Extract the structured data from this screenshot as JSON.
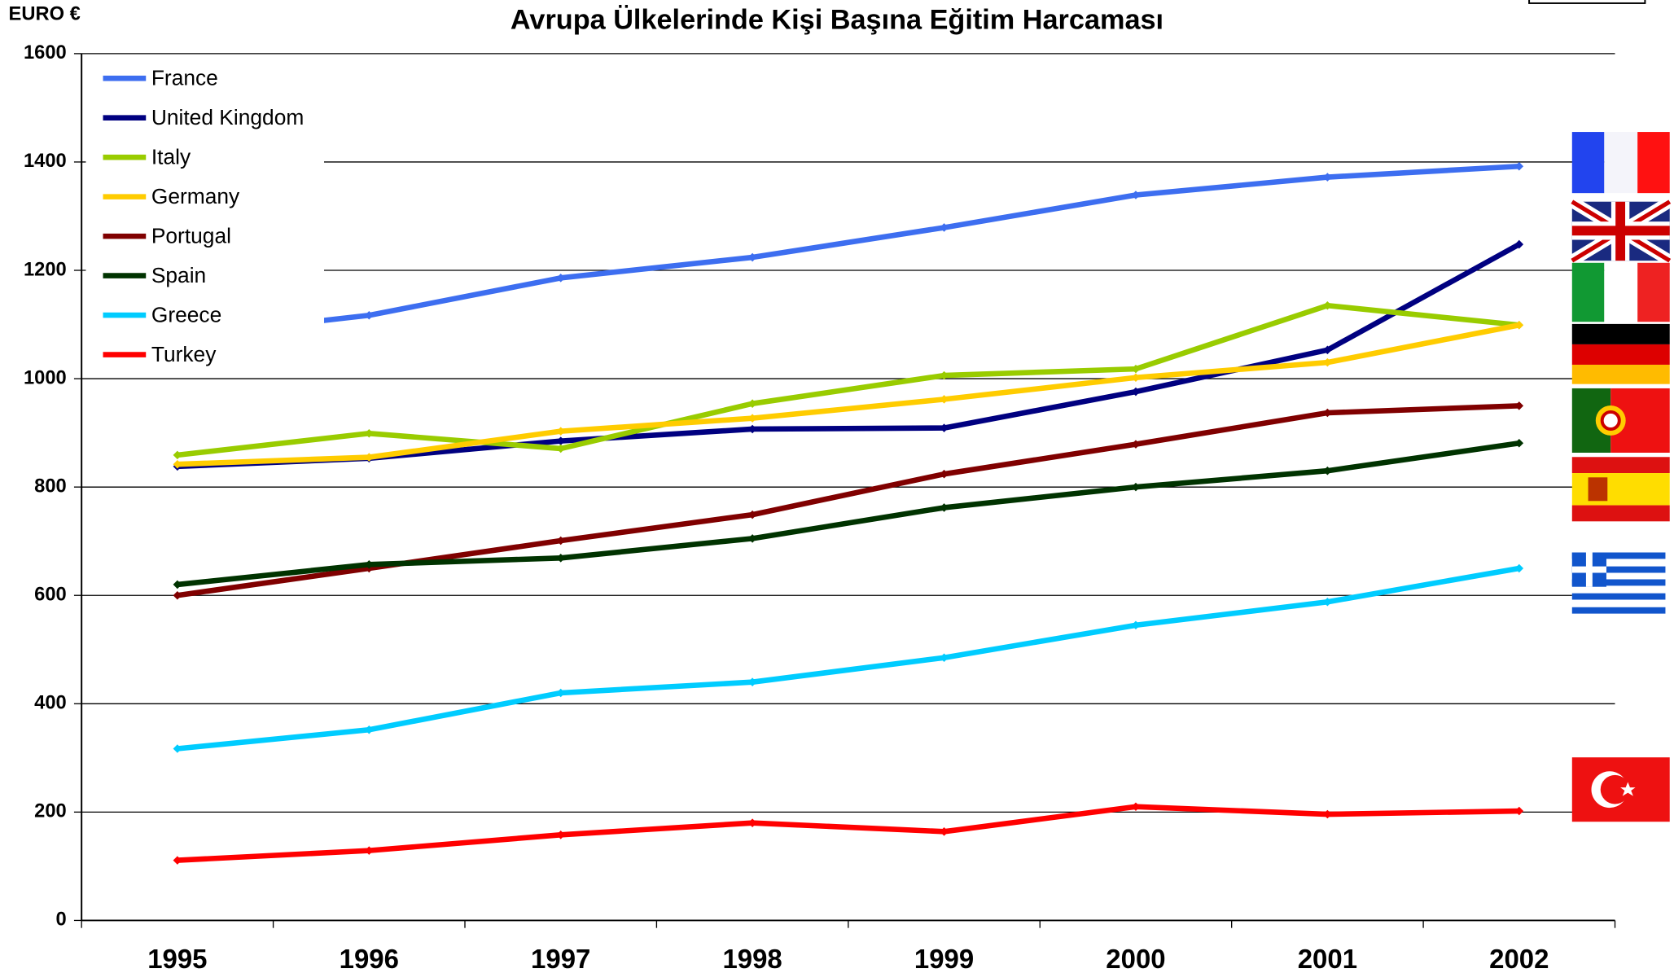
{
  "chart_data": {
    "type": "line",
    "title": "Avrupa Ülkelerinde Kişi Başına Eğitim Harcaması",
    "y_label": "EURO €",
    "categories": [
      "1995",
      "1996",
      "1997",
      "1998",
      "1999",
      "2000",
      "2001",
      "2002"
    ],
    "series": [
      {
        "name": "France",
        "color": "#3d6ef0",
        "values": [
          1077,
          1117,
          1186,
          1224,
          1279,
          1339,
          1372,
          1392
        ]
      },
      {
        "name": "United Kingdom",
        "color": "#000080",
        "values": [
          838,
          853,
          885,
          907,
          909,
          976,
          1053,
          1248
        ]
      },
      {
        "name": "Italy",
        "color": "#99cc00",
        "values": [
          859,
          899,
          871,
          954,
          1006,
          1018,
          1135,
          1099
        ]
      },
      {
        "name": "Germany",
        "color": "#ffcc00",
        "values": [
          842,
          855,
          903,
          927,
          962,
          1002,
          1030,
          1099
        ]
      },
      {
        "name": "Portugal",
        "color": "#800000",
        "values": [
          600,
          650,
          701,
          749,
          824,
          879,
          937,
          950
        ]
      },
      {
        "name": "Spain",
        "color": "#003300",
        "values": [
          620,
          657,
          669,
          705,
          762,
          800,
          830,
          881
        ]
      },
      {
        "name": "Greece",
        "color": "#00ccff",
        "values": [
          317,
          352,
          420,
          440,
          485,
          545,
          588,
          650
        ]
      },
      {
        "name": "Turkey",
        "color": "#ff0000",
        "values": [
          111,
          129,
          158,
          180,
          164,
          210,
          196,
          202
        ]
      }
    ],
    "ylim": [
      0,
      1600
    ],
    "yticks": [
      0,
      200,
      400,
      600,
      800,
      1000,
      1200,
      1400,
      1600
    ],
    "grid": true,
    "legend": "upper left"
  }
}
